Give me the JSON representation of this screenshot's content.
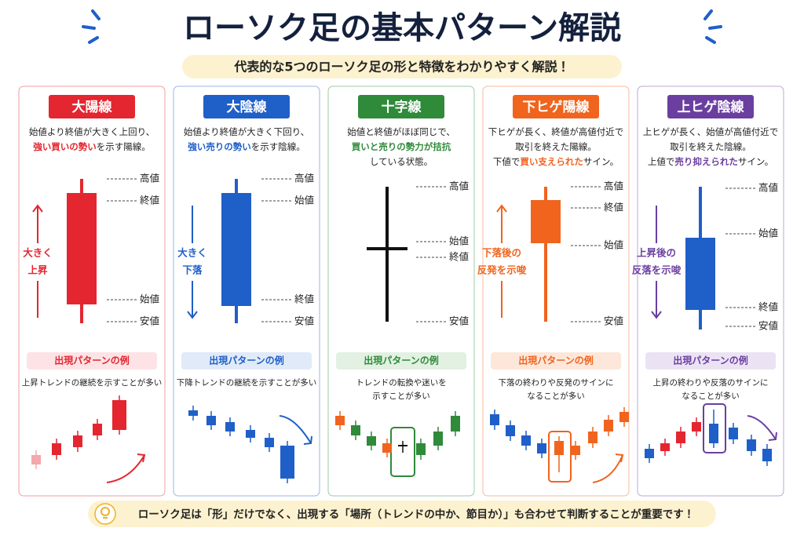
{
  "title": "ローソク足の基本パターン解説",
  "subtitle": "代表的な5つのローソク足の形と特徴をわかりやすく解説！",
  "cards": [
    {
      "name": "大陽線",
      "color": "#e3262f",
      "light_color": "#fde3e5",
      "description": [
        [
          "始値より終値が大きく上回り、"
        ],
        [
          {
            "text": "強い買いの勢い",
            "highlight": true
          },
          "を示す陽線。"
        ]
      ],
      "price_labels": [
        "高値",
        "終値",
        "始値",
        "安値"
      ],
      "trend_label": [
        "大きく",
        "上昇"
      ],
      "example_heading": "出現パターンの例",
      "example_text": [
        "上昇トレンドの継続を示すことが多い"
      ]
    },
    {
      "name": "大陰線",
      "color": "#1f5fc8",
      "light_color": "#e1eaf8",
      "description": [
        [
          "始値より終値が大きく下回り、"
        ],
        [
          {
            "text": "強い売りの勢い",
            "highlight": true
          },
          "を示す陰線。"
        ]
      ],
      "price_labels": [
        "高値",
        "始値",
        "終値",
        "安値"
      ],
      "trend_label": [
        "大きく",
        "下落"
      ],
      "example_heading": "出現パターンの例",
      "example_text": [
        "下降トレンドの継続を示すことが多い"
      ]
    },
    {
      "name": "十字線",
      "color": "#2f8a3a",
      "light_color": "#e2f1e2",
      "description": [
        [
          "始値と終値がほぼ同じで、"
        ],
        [
          {
            "text": "買いと売りの勢力が拮抗",
            "highlight": true
          }
        ],
        [
          "している状態。"
        ]
      ],
      "price_labels": [
        "高値",
        "始値",
        "終値",
        "安値"
      ],
      "example_heading": "出現パターンの例",
      "example_text": [
        "トレンドの転換や迷いを",
        "示すことが多い"
      ]
    },
    {
      "name": "下ヒゲ陽線",
      "color": "#f0641e",
      "light_color": "#fde7da",
      "description": [
        [
          "下ヒゲが長く、終値が高値付近で"
        ],
        [
          "取引を終えた陽線。"
        ],
        [
          "下値で",
          {
            "text": "買い支えられた",
            "highlight": true
          },
          "サイン。"
        ]
      ],
      "price_labels": [
        "高値",
        "終値",
        "始値",
        "安値"
      ],
      "trend_label": [
        "下落後の",
        "反発を示唆"
      ],
      "example_heading": "出現パターンの例",
      "example_text": [
        "下落の終わりや反発のサインに",
        "なることが多い"
      ]
    },
    {
      "name": "上ヒゲ陰線",
      "color": "#6b3fa0",
      "light_color": "#ebe3f4",
      "description": [
        [
          "上ヒゲが長く、始値が高値付近で"
        ],
        [
          "取引を終えた陰線。"
        ],
        [
          "上値で",
          {
            "text": "売り抑えられた",
            "highlight": true
          },
          "サイン。"
        ]
      ],
      "price_labels": [
        "高値",
        "始値",
        "終値",
        "安値"
      ],
      "trend_label": [
        "上昇後の",
        "反落を示唆"
      ],
      "example_heading": "出現パターンの例",
      "example_text": [
        "上昇の終わりや反落のサインに",
        "なることが多い"
      ]
    }
  ],
  "footer": "ローソク足は「形」だけでなく、出現する「場所（トレンドの中か、節目か）」も合わせて判断することが重要です！"
}
